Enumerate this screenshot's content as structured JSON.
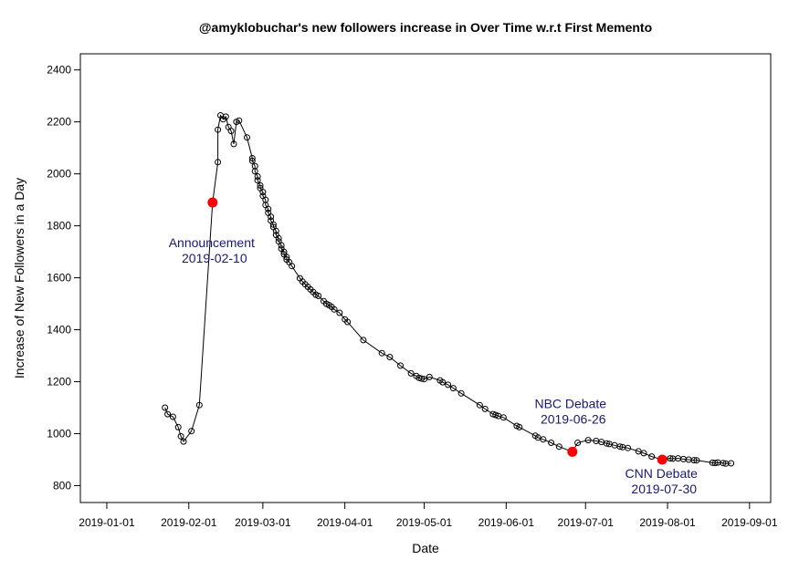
{
  "chart_data": {
    "type": "line",
    "title": "@amyklobuchar's new followers increase in Over Time w.r.t First Memento",
    "xlabel": "Date",
    "ylabel": "Increase of New Followers in a Day",
    "x_ticks": [
      "2019-01-01",
      "2019-02-01",
      "2019-03-01",
      "2019-04-01",
      "2019-05-01",
      "2019-06-01",
      "2019-07-01",
      "2019-08-01",
      "2019-09-01"
    ],
    "y_ticks": [
      800,
      1000,
      1200,
      1400,
      1600,
      1800,
      2000,
      2200,
      2400
    ],
    "xlim": [
      "2018-12-22",
      "2019-09-09"
    ],
    "ylim": [
      735,
      2462
    ],
    "series": [
      {
        "marker": "open-circle",
        "color": "#000000",
        "points": [
          [
            "2019-01-23",
            1100
          ],
          [
            "2019-01-24",
            1075
          ],
          [
            "2019-01-26",
            1065
          ],
          [
            "2019-01-28",
            1025
          ],
          [
            "2019-01-29",
            990
          ],
          [
            "2019-01-30",
            970
          ],
          [
            "2019-02-02",
            1010
          ],
          [
            "2019-02-05",
            1110
          ],
          [
            "2019-02-10",
            1890
          ],
          [
            "2019-02-12",
            2045
          ],
          [
            "2019-02-12",
            2170
          ],
          [
            "2019-02-13",
            2225
          ],
          [
            "2019-02-14",
            2210
          ],
          [
            "2019-02-15",
            2220
          ],
          [
            "2019-02-16",
            2180
          ],
          [
            "2019-02-17",
            2165
          ],
          [
            "2019-02-18",
            2115
          ],
          [
            "2019-02-19",
            2200
          ],
          [
            "2019-02-20",
            2205
          ],
          [
            "2019-02-23",
            2140
          ],
          [
            "2019-02-25",
            2060
          ],
          [
            "2019-02-25",
            2050
          ],
          [
            "2019-02-26",
            2030
          ],
          [
            "2019-02-26",
            2010
          ],
          [
            "2019-02-27",
            1990
          ],
          [
            "2019-02-27",
            1975
          ],
          [
            "2019-02-28",
            1955
          ],
          [
            "2019-02-28",
            1945
          ],
          [
            "2019-03-01",
            1930
          ],
          [
            "2019-03-01",
            1915
          ],
          [
            "2019-03-02",
            1900
          ],
          [
            "2019-03-02",
            1880
          ],
          [
            "2019-03-03",
            1865
          ],
          [
            "2019-03-03",
            1850
          ],
          [
            "2019-03-04",
            1835
          ],
          [
            "2019-03-04",
            1820
          ],
          [
            "2019-03-05",
            1805
          ],
          [
            "2019-03-05",
            1795
          ],
          [
            "2019-03-06",
            1780
          ],
          [
            "2019-03-06",
            1765
          ],
          [
            "2019-03-07",
            1752
          ],
          [
            "2019-03-07",
            1740
          ],
          [
            "2019-03-08",
            1725
          ],
          [
            "2019-03-08",
            1712
          ],
          [
            "2019-03-09",
            1700
          ],
          [
            "2019-03-09",
            1690
          ],
          [
            "2019-03-10",
            1680
          ],
          [
            "2019-03-10",
            1670
          ],
          [
            "2019-03-11",
            1660
          ],
          [
            "2019-03-12",
            1645
          ],
          [
            "2019-03-15",
            1598
          ],
          [
            "2019-03-16",
            1585
          ],
          [
            "2019-03-17",
            1575
          ],
          [
            "2019-03-18",
            1565
          ],
          [
            "2019-03-19",
            1555
          ],
          [
            "2019-03-20",
            1545
          ],
          [
            "2019-03-21",
            1535
          ],
          [
            "2019-03-22",
            1530
          ],
          [
            "2019-03-24",
            1510
          ],
          [
            "2019-03-25",
            1500
          ],
          [
            "2019-03-26",
            1495
          ],
          [
            "2019-03-27",
            1488
          ],
          [
            "2019-03-28",
            1478
          ],
          [
            "2019-03-30",
            1465
          ],
          [
            "2019-04-01",
            1440
          ],
          [
            "2019-04-02",
            1430
          ],
          [
            "2019-04-08",
            1360
          ],
          [
            "2019-04-15",
            1310
          ],
          [
            "2019-04-18",
            1295
          ],
          [
            "2019-04-22",
            1262
          ],
          [
            "2019-04-26",
            1232
          ],
          [
            "2019-04-28",
            1222
          ],
          [
            "2019-04-29",
            1215
          ],
          [
            "2019-04-30",
            1212
          ],
          [
            "2019-05-01",
            1210
          ],
          [
            "2019-05-03",
            1218
          ],
          [
            "2019-05-07",
            1205
          ],
          [
            "2019-05-08",
            1198
          ],
          [
            "2019-05-10",
            1188
          ],
          [
            "2019-05-12",
            1175
          ],
          [
            "2019-05-15",
            1155
          ],
          [
            "2019-05-22",
            1110
          ],
          [
            "2019-05-24",
            1095
          ],
          [
            "2019-05-27",
            1075
          ],
          [
            "2019-05-28",
            1072
          ],
          [
            "2019-05-29",
            1068
          ],
          [
            "2019-05-31",
            1062
          ],
          [
            "2019-06-05",
            1030
          ],
          [
            "2019-06-06",
            1025
          ],
          [
            "2019-06-12",
            992
          ],
          [
            "2019-06-13",
            985
          ],
          [
            "2019-06-15",
            978
          ],
          [
            "2019-06-18",
            965
          ],
          [
            "2019-06-21",
            950
          ],
          [
            "2019-06-26",
            930
          ],
          [
            "2019-06-28",
            965
          ],
          [
            "2019-07-02",
            975
          ],
          [
            "2019-07-05",
            972
          ],
          [
            "2019-07-07",
            968
          ],
          [
            "2019-07-09",
            962
          ],
          [
            "2019-07-10",
            960
          ],
          [
            "2019-07-12",
            955
          ],
          [
            "2019-07-14",
            950
          ],
          [
            "2019-07-15",
            948
          ],
          [
            "2019-07-17",
            945
          ],
          [
            "2019-07-21",
            932
          ],
          [
            "2019-07-23",
            925
          ],
          [
            "2019-07-26",
            912
          ],
          [
            "2019-07-30",
            900
          ],
          [
            "2019-08-02",
            905
          ],
          [
            "2019-08-03",
            904
          ],
          [
            "2019-08-05",
            905
          ],
          [
            "2019-08-07",
            902
          ],
          [
            "2019-08-09",
            900
          ],
          [
            "2019-08-11",
            898
          ],
          [
            "2019-08-12",
            897
          ],
          [
            "2019-08-18",
            888
          ],
          [
            "2019-08-19",
            887
          ],
          [
            "2019-08-20",
            889
          ],
          [
            "2019-08-22",
            887
          ],
          [
            "2019-08-23",
            885
          ],
          [
            "2019-08-25",
            886
          ]
        ]
      }
    ],
    "highlighted_points": [
      {
        "date": "2019-02-10",
        "value": 1890,
        "label_line1": "Announcement",
        "label_line2": "2019-02-10",
        "label_pos": "below-left"
      },
      {
        "date": "2019-06-26",
        "value": 930,
        "label_line1": "NBC Debate",
        "label_line2": "2019-06-26",
        "label_pos": "above-left"
      },
      {
        "date": "2019-07-30",
        "value": 900,
        "label_line1": "CNN Debate",
        "label_line2": "2019-07-30",
        "label_pos": "below"
      }
    ],
    "colors": {
      "line": "#000000",
      "highlight": "#ff0000",
      "annotation": "#191970"
    },
    "grid": false,
    "legend": "none"
  }
}
